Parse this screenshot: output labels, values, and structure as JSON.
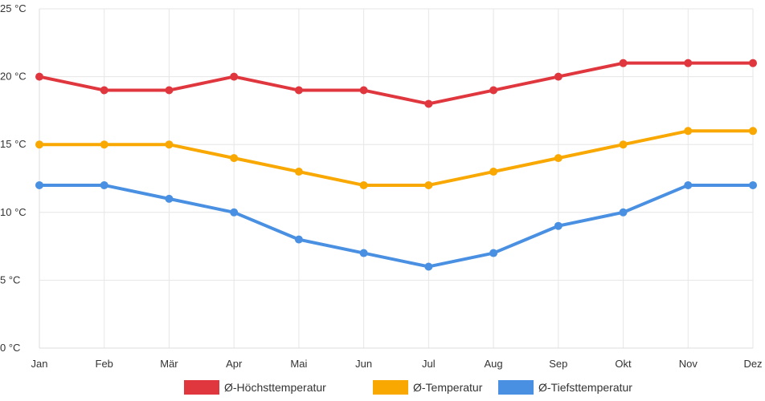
{
  "chart_data": {
    "type": "line",
    "title": "",
    "xlabel": "",
    "ylabel": "",
    "categories": [
      "Jan",
      "Feb",
      "Mär",
      "Apr",
      "Mai",
      "Jun",
      "Jul",
      "Aug",
      "Sep",
      "Okt",
      "Nov",
      "Dez"
    ],
    "ylim": [
      0,
      25
    ],
    "yticks": [
      0,
      5,
      10,
      15,
      20,
      25
    ],
    "ytick_unit": " °C",
    "grid": true,
    "legend_position": "bottom",
    "series": [
      {
        "name": "Ø-Höchsttemperatur",
        "color": "#e0373f",
        "values": [
          20,
          19,
          19,
          20,
          19,
          19,
          18,
          19,
          20,
          21,
          21,
          21
        ]
      },
      {
        "name": "Ø-Temperatur",
        "color": "#f8a800",
        "values": [
          15,
          15,
          15,
          14,
          13,
          12,
          12,
          13,
          14,
          15,
          16,
          16
        ]
      },
      {
        "name": "Ø-Tiefsttemperatur",
        "color": "#4a90e2",
        "values": [
          12,
          12,
          11,
          10,
          8,
          7,
          6,
          7,
          9,
          10,
          12,
          12
        ]
      }
    ]
  }
}
